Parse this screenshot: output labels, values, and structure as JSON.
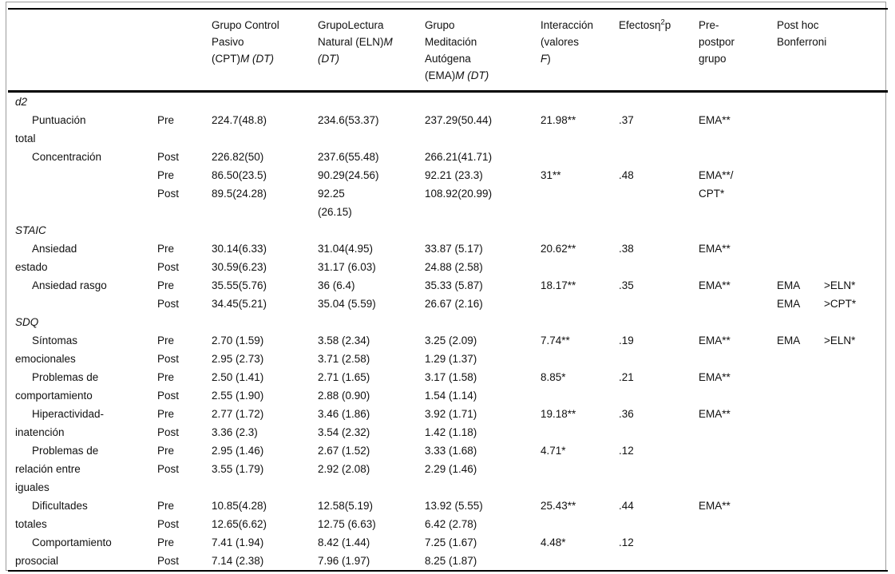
{
  "table": {
    "header": {
      "label": [],
      "prepost": [],
      "cpt": [
        [
          {
            "t": "Grupo Control"
          }
        ],
        [
          {
            "t": "Pasivo"
          }
        ],
        [
          {
            "t": "(CPT)"
          },
          {
            "t": "M (DT)",
            "i": true
          }
        ]
      ],
      "eln": [
        [
          {
            "t": "GrupoLectura"
          }
        ],
        [
          {
            "t": "Natural (ELN)"
          },
          {
            "t": "M",
            "i": true
          }
        ],
        [
          {
            "t": "(DT)",
            "i": true
          }
        ]
      ],
      "ema": [
        [
          {
            "t": "Grupo"
          }
        ],
        [
          {
            "t": "Meditación"
          }
        ],
        [
          {
            "t": "Autógena"
          }
        ],
        [
          {
            "t": "(EMA)"
          },
          {
            "t": "M (DT)",
            "i": true
          }
        ]
      ],
      "inter": [
        [
          {
            "t": "Interacción"
          }
        ],
        [
          {
            "t": "(valores"
          }
        ],
        [
          {
            "t": "F",
            "i": true
          },
          {
            "t": ")"
          }
        ]
      ],
      "eff": [
        [
          {
            "t": "Efectosη"
          },
          {
            "t": "2",
            "sup": true
          },
          {
            "t": "p"
          }
        ]
      ],
      "ppg": [
        [
          {
            "t": "Pre-"
          }
        ],
        [
          {
            "t": "postpor"
          }
        ],
        [
          {
            "t": "grupo"
          }
        ]
      ],
      "posthoc": [
        [
          {
            "t": "Post hoc"
          }
        ],
        [
          {
            "t": "Bonferroni"
          }
        ]
      ]
    },
    "rows": [
      {
        "label": "d2",
        "italic": true
      },
      {
        "label": "Puntuación",
        "indent": true,
        "prepost": "Pre",
        "cpt": "224.7(48.8)",
        "eln": "234.6(53.37)",
        "ema": "237.29(50.44)",
        "inter": "21.98**",
        "eff": ".37",
        "ppg": "EMA**"
      },
      {
        "label": "total"
      },
      {
        "label": "Concentración",
        "indent": true,
        "prepost": "Post",
        "cpt": "226.82(50)",
        "eln": "237.6(55.48)",
        "ema": "266.21(41.71)"
      },
      {
        "prepost": "Pre",
        "cpt": "86.50(23.5)",
        "eln": "90.29(24.56)",
        "ema": "92.21 (23.3)",
        "inter": "31**",
        "eff": ".48",
        "ppg": "EMA**/"
      },
      {
        "prepost": "Post",
        "cpt": "89.5(24.28)",
        "eln": "92.25",
        "ema": "108.92(20.99)",
        "ppg": "CPT*"
      },
      {
        "eln": "(26.15)"
      },
      {
        "label": "STAIC",
        "italic": true
      },
      {
        "label": "Ansiedad",
        "indent": true,
        "prepost": "Pre",
        "cpt": "30.14(6.33)",
        "eln": "31.04(4.95)",
        "ema": "33.87 (5.17)",
        "inter": "20.62**",
        "eff": ".38",
        "ppg": "EMA**"
      },
      {
        "label": "estado",
        "prepost": "Post",
        "cpt": "30.59(6.23)",
        "eln": "31.17 (6.03)",
        "ema": "24.88 (2.58)"
      },
      {
        "label": "Ansiedad rasgo",
        "indent": true,
        "prepost": "Pre",
        "cpt": "35.55(5.76)",
        "eln": "36 (6.4)",
        "ema": "35.33 (5.87)",
        "inter": "18.17**",
        "eff": ".35",
        "ppg": "EMA**",
        "ph1": "EMA",
        "ph2": ">ELN*"
      },
      {
        "prepost": "Post",
        "cpt": "34.45(5.21)",
        "eln": "35.04 (5.59)",
        "ema": "26.67 (2.16)",
        "ph1": "EMA",
        "ph2": ">CPT*"
      },
      {
        "label": "SDQ",
        "italic": true
      },
      {
        "label": "Síntomas",
        "indent": true,
        "prepost": "Pre",
        "cpt": "2.70 (1.59)",
        "eln": "3.58 (2.34)",
        "ema": "3.25 (2.09)",
        "inter": "7.74**",
        "eff": ".19",
        "ppg": "EMA**",
        "ph1": "EMA",
        "ph2": ">ELN*"
      },
      {
        "label": "emocionales",
        "prepost": "Post",
        "cpt": "2.95 (2.73)",
        "eln": "3.71 (2.58)",
        "ema": "1.29 (1.37)"
      },
      {
        "label": "Problemas de",
        "indent": true,
        "prepost": "Pre",
        "cpt": "2.50 (1.41)",
        "eln": "2.71 (1.65)",
        "ema": "3.17 (1.58)",
        "inter": "8.85*",
        "eff": ".21",
        "ppg": "EMA**"
      },
      {
        "label": "comportamiento",
        "prepost": "Post",
        "cpt": "2.55 (1.90)",
        "eln": "2.88 (0.90)",
        "ema": "1.54 (1.14)"
      },
      {
        "label": "Hiperactividad-",
        "indent": true,
        "prepost": "Pre",
        "cpt": "2.77 (1.72)",
        "eln": "3.46 (1.86)",
        "ema": "3.92 (1.71)",
        "inter": "19.18**",
        "eff": ".36",
        "ppg": "EMA**"
      },
      {
        "label": "inatención",
        "prepost": "Post",
        "cpt": "3.36 (2.3)",
        "eln": "3.54 (2.32)",
        "ema": "1.42 (1.18)"
      },
      {
        "label": "Problemas de",
        "indent": true,
        "prepost": "Pre",
        "cpt": "2.95 (1.46)",
        "eln": "2.67 (1.52)",
        "ema": "3.33 (1.68)",
        "inter": "4.71*",
        "eff": ".12"
      },
      {
        "label": "relación entre",
        "prepost": "Post",
        "cpt": "3.55 (1.79)",
        "eln": "2.92 (2.08)",
        "ema": "2.29 (1.46)"
      },
      {
        "label": "iguales"
      },
      {
        "label": "Dificultades",
        "indent": true,
        "prepost": "Pre",
        "cpt": "10.85(4.28)",
        "eln": "12.58(5.19)",
        "ema": "13.92 (5.55)",
        "inter": "25.43**",
        "eff": ".44",
        "ppg": "EMA**"
      },
      {
        "label": "totales",
        "prepost": "Post",
        "cpt": "12.65(6.62)",
        "eln": "12.75 (6.63)",
        "ema": "6.42 (2.78)"
      },
      {
        "label": "Comportamiento",
        "indent": true,
        "prepost": "Pre",
        "cpt": "7.41 (1.94)",
        "eln": "8.42 (1.44)",
        "ema": "7.25 (1.67)",
        "inter": "4.48*",
        "eff": ".12"
      },
      {
        "label": "prosocial",
        "prepost": "Post",
        "cpt": "7.14 (2.38)",
        "eln": "7.96 (1.97)",
        "ema": "8.25 (1.87)"
      }
    ]
  }
}
